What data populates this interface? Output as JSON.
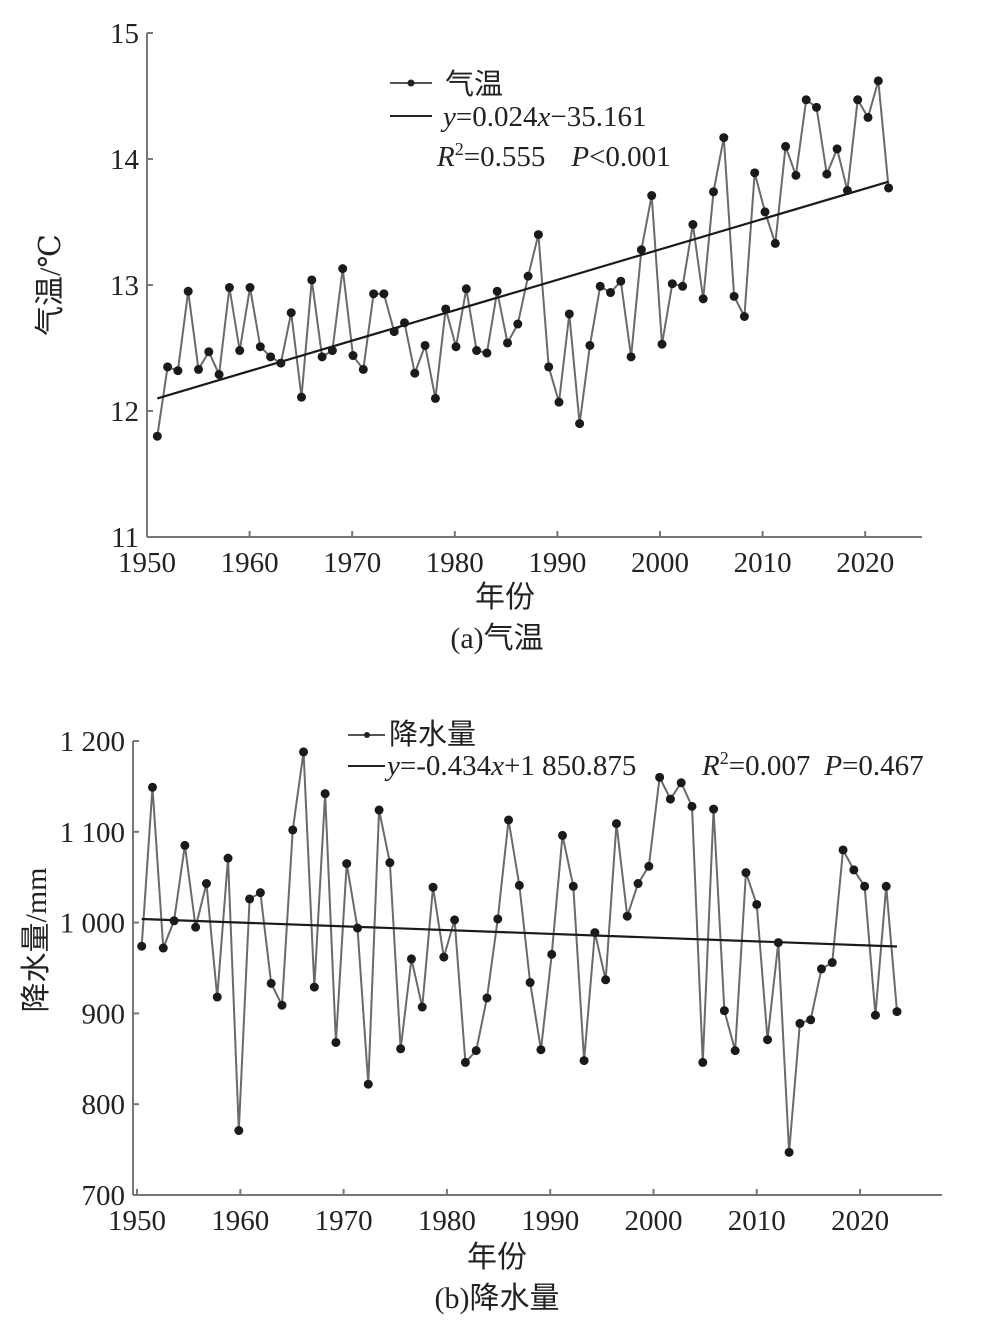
{
  "chart_data": [
    {
      "type": "line",
      "caption": "(a)气温",
      "xlabel": "年份",
      "ylabel": "气温/℃",
      "xlim": [
        1950,
        2025
      ],
      "ylim": [
        11,
        15
      ],
      "xticks": [
        "1950",
        "1960",
        "1970",
        "1980",
        "1990",
        "2000",
        "2010",
        "2020"
      ],
      "yticks": [
        "11",
        "12",
        "13",
        "14",
        "15"
      ],
      "legend": {
        "series": "气温",
        "fit_eq_y": "y",
        "fit_eq_rest": "=0.024",
        "fit_eq_x": "x",
        "fit_eq_tail": "−35.161",
        "r2_label": "R",
        "r2_value": "=0.555",
        "p_label": "P",
        "p_value": "<0.001"
      },
      "series": [
        {
          "name": "气温",
          "x_start": 1951,
          "values": [
            11.8,
            12.35,
            12.32,
            12.95,
            12.33,
            12.47,
            12.29,
            12.98,
            12.48,
            12.98,
            12.51,
            12.43,
            12.38,
            12.78,
            12.11,
            13.04,
            12.43,
            12.48,
            13.13,
            12.44,
            12.33,
            12.93,
            12.93,
            12.63,
            12.7,
            12.3,
            12.52,
            12.1,
            12.81,
            12.51,
            12.97,
            12.48,
            12.46,
            12.95,
            12.54,
            12.69,
            13.07,
            13.4,
            12.35,
            12.07,
            12.77,
            11.9,
            12.52,
            12.99,
            12.94,
            13.03,
            12.43,
            13.28,
            13.71,
            12.53,
            13.01,
            12.99,
            13.48,
            12.89,
            13.74,
            14.17,
            12.91,
            12.75,
            13.89,
            13.58,
            13.33,
            14.1,
            13.87,
            14.47,
            14.41,
            13.88,
            14.08,
            13.75,
            14.47,
            14.33,
            14.62,
            13.77
          ]
        }
      ],
      "trend": {
        "x": [
          1951,
          2022
        ],
        "y": [
          12.1,
          13.82
        ]
      }
    },
    {
      "type": "line",
      "caption": "(b)降水量",
      "xlabel": "年份",
      "ylabel": "降水量/mm",
      "xlim": [
        1950,
        2025
      ],
      "ylim": [
        700,
        1200
      ],
      "xticks": [
        "1950",
        "1960",
        "1970",
        "1980",
        "1990",
        "2000",
        "2010",
        "2020"
      ],
      "yticks": [
        "700",
        "800",
        "900",
        "1 000",
        "1 100",
        "1 200"
      ],
      "legend": {
        "series": "降水量",
        "fit_eq_y": "y",
        "fit_eq_rest": "=-0.434",
        "fit_eq_x": "x",
        "fit_eq_tail": "+1 850.875",
        "r2_label": "R",
        "r2_value": "=0.007",
        "p_label": "P",
        "p_value": "=0.467"
      },
      "series": [
        {
          "name": "降水量",
          "x_start": 1951,
          "values": [
            974,
            1149,
            972,
            1002,
            1085,
            995,
            1043,
            918,
            1071,
            771,
            1026,
            1033,
            933,
            909,
            1102,
            1188,
            929,
            1142,
            868,
            1065,
            994,
            822,
            1124,
            1066,
            861,
            960,
            907,
            1039,
            962,
            1003,
            846,
            859,
            917,
            1004,
            1113,
            1041,
            934,
            860,
            965,
            1096,
            1040,
            848,
            989,
            937,
            1109,
            1007,
            1043,
            1062,
            1160,
            1136,
            1154,
            1128,
            846,
            1125,
            903,
            859,
            1055,
            1020,
            871,
            978,
            747,
            889,
            893,
            949,
            956,
            1080,
            1058,
            1040,
            898,
            1040,
            902
          ]
        }
      ],
      "trend": {
        "x": [
          1951,
          2021
        ],
        "y": [
          1004,
          973.7
        ]
      }
    }
  ]
}
